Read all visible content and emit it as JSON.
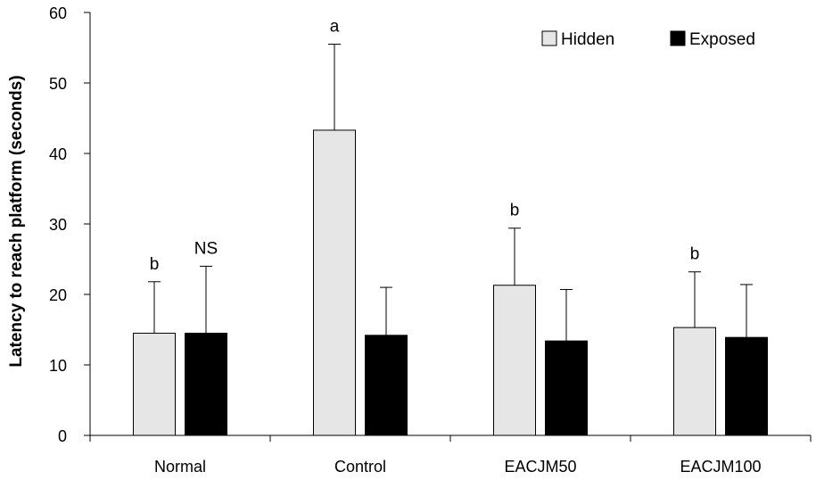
{
  "chart_data": {
    "type": "bar",
    "title": "",
    "xlabel": "",
    "ylabel": "Latency to reach platform (seconds)",
    "ylim": [
      0,
      60
    ],
    "yticks": [
      0,
      10,
      20,
      30,
      40,
      50,
      60
    ],
    "grid": false,
    "legend_position": "top-right",
    "categories": [
      "Normal",
      "Control",
      "EACJM50",
      "EACJM100"
    ],
    "series": [
      {
        "name": "Hidden",
        "color": "#e6e6e6",
        "values": [
          14.5,
          43.3,
          21.3,
          15.3
        ],
        "errors": [
          7.3,
          12.2,
          8.1,
          7.9
        ],
        "annotations": [
          "b",
          "a",
          "b",
          "b"
        ]
      },
      {
        "name": "Exposed",
        "color": "#000000",
        "values": [
          14.5,
          14.2,
          13.4,
          13.9
        ],
        "errors": [
          9.5,
          6.8,
          7.3,
          7.5
        ],
        "annotations": [
          "NS",
          "",
          "",
          ""
        ]
      }
    ]
  }
}
